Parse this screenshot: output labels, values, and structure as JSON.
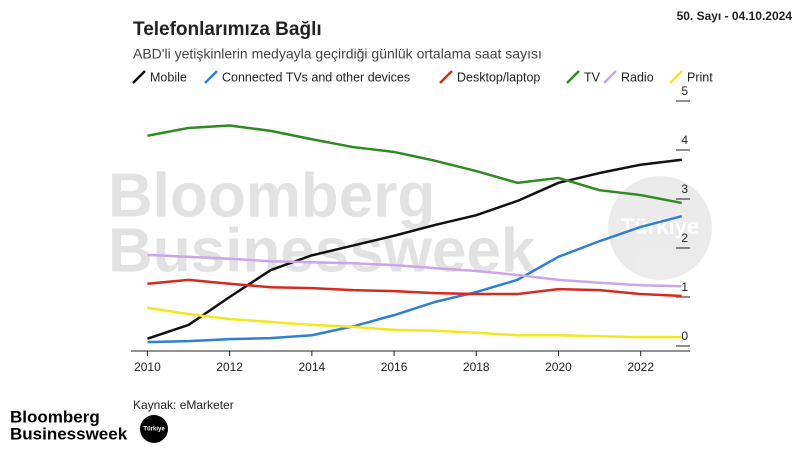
{
  "issue": "50. Sayı - 04.10.2024",
  "watermark": {
    "line1": "Bloomberg",
    "line2": "Businessweek",
    "badge": "Türkiye"
  },
  "logo": {
    "line1": "Bloomberg",
    "line2": "Businessweek",
    "badge": "Türkiye"
  },
  "chart_data": {
    "type": "line",
    "title": "Telefonlarımıza Bağlı",
    "subtitle": "ABD'li yetişkinlerin medyayla geçirdiği günlük ortalama saat sayısı",
    "source": "Kaynak: eMarketer",
    "x": [
      2010,
      2011,
      2012,
      2013,
      2014,
      2015,
      2016,
      2017,
      2018,
      2019,
      2020,
      2021,
      2022,
      2023
    ],
    "xlim": [
      2009.6,
      2023.2
    ],
    "xticks": [
      2010,
      2012,
      2014,
      2016,
      2018,
      2020,
      2022
    ],
    "ylim": [
      0,
      5
    ],
    "yticks": [
      0,
      1,
      2,
      3,
      4,
      5
    ],
    "series": [
      {
        "name": "Mobile",
        "color": "#111111",
        "values": [
          0.15,
          0.43,
          1.0,
          1.55,
          1.85,
          2.05,
          2.25,
          2.47,
          2.67,
          2.96,
          3.33,
          3.53,
          3.7,
          3.8
        ]
      },
      {
        "name": "Connected TVs and other devices",
        "color": "#2f7fd6",
        "values": [
          0.08,
          0.1,
          0.14,
          0.16,
          0.22,
          0.4,
          0.63,
          0.9,
          1.1,
          1.35,
          1.82,
          2.14,
          2.43,
          2.65
        ]
      },
      {
        "name": "Desktop/laptop",
        "color": "#d42a20",
        "values": [
          1.27,
          1.35,
          1.27,
          1.2,
          1.18,
          1.14,
          1.12,
          1.08,
          1.06,
          1.06,
          1.16,
          1.14,
          1.06,
          1.02
        ]
      },
      {
        "name": "TV",
        "color": "#2e8b22",
        "values": [
          4.29,
          4.45,
          4.5,
          4.39,
          4.22,
          4.06,
          3.96,
          3.78,
          3.57,
          3.33,
          3.43,
          3.18,
          3.08,
          2.92
        ]
      },
      {
        "name": "Radio",
        "color": "#c9a6ec",
        "values": [
          1.86,
          1.82,
          1.78,
          1.73,
          1.71,
          1.69,
          1.65,
          1.59,
          1.53,
          1.45,
          1.35,
          1.29,
          1.24,
          1.22
        ]
      },
      {
        "name": "Print",
        "color": "#f2e81c",
        "values": [
          0.78,
          0.65,
          0.55,
          0.49,
          0.43,
          0.39,
          0.33,
          0.31,
          0.27,
          0.22,
          0.22,
          0.2,
          0.18,
          0.18
        ]
      }
    ]
  }
}
